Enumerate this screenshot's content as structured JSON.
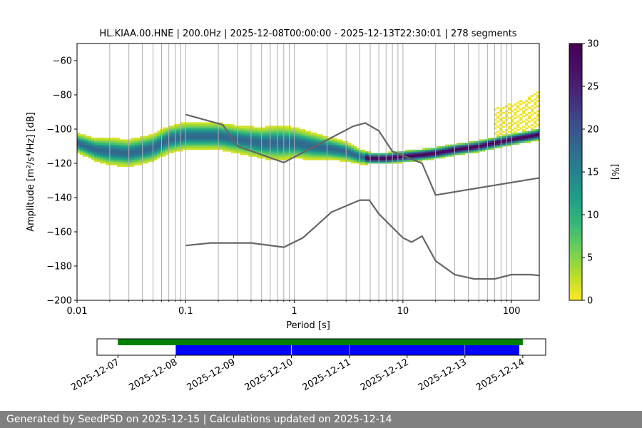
{
  "chart_data": [
    {
      "type": "heatmap",
      "title": "HL.KIAA.00.HNE | 200.0Hz | 2025-12-08T00:00:00 - 2025-12-13T22:30:01 | 278 segments",
      "xlabel": "Period [s]",
      "ylabel": "Amplitude [m²/s⁴/Hz] [dB]",
      "xscale": "log",
      "xlim": [
        0.01,
        180
      ],
      "ylim": [
        -200,
        -50
      ],
      "x_tick_labels": [
        "0.01",
        "0.1",
        "1",
        "10",
        "100"
      ],
      "x_tick_values": [
        0.01,
        0.1,
        1,
        10,
        100
      ],
      "y_ticks": [
        -200,
        -180,
        -160,
        -140,
        -120,
        -100,
        -80,
        -60
      ],
      "grid": "vertical",
      "colorbar": {
        "label": "[%]",
        "ticks": [
          0,
          5,
          10,
          15,
          20,
          25,
          30
        ],
        "range": [
          0,
          30
        ],
        "colormap": "viridis_r"
      },
      "density_mode": {
        "period": [
          0.01,
          0.015,
          0.02,
          0.03,
          0.05,
          0.07,
          0.1,
          0.15,
          0.2,
          0.3,
          0.5,
          0.7,
          1,
          1.5,
          2,
          3,
          4,
          5,
          7,
          10,
          15,
          20,
          30,
          50,
          70,
          100,
          150,
          180
        ],
        "amplitude_db": [
          -108,
          -112,
          -113,
          -114,
          -111,
          -106,
          -104,
          -104,
          -104,
          -106,
          -108,
          -108,
          -108,
          -110,
          -111,
          -113,
          -116,
          -117,
          -117,
          -116,
          -115,
          -114,
          -112,
          -110,
          -108,
          -106,
          -104,
          -103
        ],
        "spread_db": [
          5,
          6,
          7,
          7,
          7,
          7,
          7,
          7,
          7,
          7,
          8,
          9,
          8,
          7,
          6,
          5,
          4,
          3,
          3,
          3,
          3,
          3,
          3,
          3,
          3,
          3,
          3,
          3
        ]
      },
      "upper_band": {
        "period": [
          70,
          100,
          150,
          180
        ],
        "min_db": [
          -108,
          -106,
          -104,
          -103
        ],
        "max_db": [
          -88,
          -85,
          -81,
          -78
        ]
      },
      "series": [
        {
          "name": "",
          "x": [
            0.1,
            0.22,
            0.3,
            0.8,
            3.5,
            4.5,
            6,
            8,
            15,
            20,
            180
          ],
          "y": [
            -91.5,
            -97.5,
            -110,
            -119.5,
            -98.3,
            -96.4,
            -101,
            -113,
            -120,
            -138.5,
            -128.5
          ],
          "color": "#666666"
        },
        {
          "name": "",
          "x": [
            0.1,
            0.17,
            0.4,
            0.8,
            1.2,
            2.2,
            4,
            4.9,
            6,
            10,
            12,
            15,
            20,
            30,
            45,
            70,
            100,
            150,
            180
          ],
          "y": [
            -168,
            -166.5,
            -166.5,
            -169,
            -163.5,
            -148.5,
            -141.5,
            -141.5,
            -149.5,
            -163.5,
            -166,
            -162.5,
            -177,
            -185,
            -187.5,
            -187.5,
            -185,
            -185,
            -185.5
          ],
          "color": "#666666"
        }
      ]
    },
    {
      "type": "timeline",
      "x_tick_labels": [
        "2025-12-07",
        "2025-12-08",
        "2025-12-09",
        "2025-12-10",
        "2025-12-11",
        "2025-12-12",
        "2025-12-13",
        "2025-12-14"
      ],
      "x_tick_values": [
        "2025-12-07",
        "2025-12-08",
        "2025-12-09",
        "2025-12-10",
        "2025-12-11",
        "2025-12-12",
        "2025-12-13",
        "2025-12-14"
      ],
      "xlim": [
        "2025-12-06T15:21",
        "2025-12-14T09:30"
      ],
      "coverage_color": "#008000",
      "segments_color": "#0000ff",
      "coverage": [
        {
          "start": "2025-12-07",
          "end": "2025-12-14"
        }
      ],
      "segments": [
        {
          "start": "2025-12-08T00:00",
          "end": "2025-12-09T23:50"
        },
        {
          "start": "2025-12-10T00:05",
          "end": "2025-12-10T23:55"
        },
        {
          "start": "2025-12-11T00:05",
          "end": "2025-12-12T23:55"
        },
        {
          "start": "2025-12-13T00:05",
          "end": "2025-12-13T22:30"
        }
      ]
    }
  ],
  "footer": {
    "text": "Generated by SeedPSD on 2025-12-15 | Calculations updated on 2025-12-14"
  }
}
